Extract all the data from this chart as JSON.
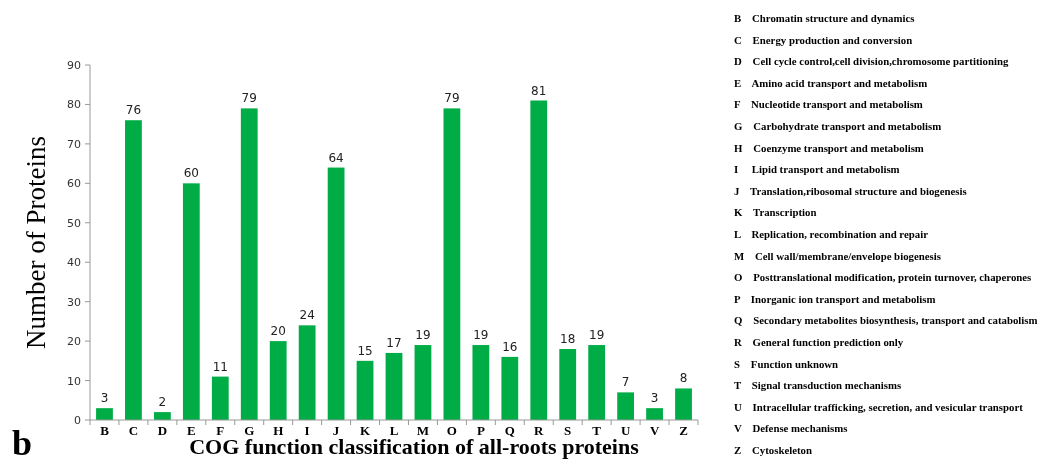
{
  "chart_data": {
    "type": "bar",
    "xlabel": "COG function classification of all-roots proteins",
    "ylabel": "Number of Proteins",
    "categories": [
      "B",
      "C",
      "D",
      "E",
      "F",
      "G",
      "H",
      "I",
      "J",
      "K",
      "L",
      "M",
      "O",
      "P",
      "Q",
      "R",
      "S",
      "T",
      "U",
      "V",
      "Z"
    ],
    "values": [
      3,
      76,
      2,
      60,
      11,
      79,
      20,
      24,
      64,
      15,
      17,
      19,
      79,
      19,
      16,
      81,
      18,
      19,
      7,
      3,
      8
    ],
    "color": "#00ac45",
    "ylim": [
      0,
      90
    ],
    "yticks": [
      0,
      10,
      20,
      30,
      40,
      50,
      60,
      70,
      80,
      90
    ],
    "grid": false,
    "data_labels": true,
    "annotations": [
      "b",
      "B    Chromatin structure and dynamics",
      "C    Energy production and conversion",
      "D    Cell cycle control,cell division,chromosome partitioning",
      "E    Amino acid transport and metabolism",
      "F    Nucleotide transport and metabolism",
      "G    Carbohydrate transport and metabolism",
      "H    Coenzyme transport and metabolism",
      "I     Lipid transport and metabolism",
      "J    Translation,ribosomal structure and biogenesis",
      "K    Transcription",
      "L    Replication, recombination and repair",
      "M    Cell wall/membrane/envelope biogenesis",
      "O    Posttranslational modification, protein turnover, chaperones",
      "P    Inorganic ion transport and metabolism",
      "Q    Secondary metabolites biosynthesis, transport and catabolism",
      "R    General function prediction only",
      "S    Function unknown",
      "T    Signal transduction mechanisms",
      "U    Intracellular trafficking, secretion, and vesicular transport",
      "V    Defense mechanisms",
      "Z    Cytoskeleton"
    ]
  }
}
